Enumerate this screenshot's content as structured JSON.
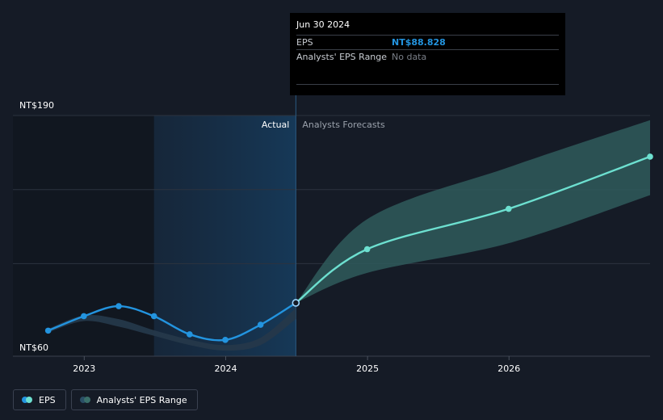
{
  "chart_data": {
    "type": "line",
    "y_axis": {
      "min_label": "NT$60",
      "max_label": "NT$190",
      "ylim": [
        60,
        190
      ]
    },
    "x_ticks": [
      {
        "label": "2023",
        "x": "2023-01-01"
      },
      {
        "label": "2024",
        "x": "2024-01-01"
      },
      {
        "label": "2025",
        "x": "2025-01-01"
      },
      {
        "label": "2026",
        "x": "2026-01-01"
      }
    ],
    "x_range": [
      "2022-07-01",
      "2026-12-31"
    ],
    "regions": {
      "actual_label": "Actual",
      "forecast_label": "Analysts Forecasts"
    },
    "series": [
      {
        "name": "EPS",
        "role": "actual",
        "color": "#2394df",
        "points": [
          {
            "x": "2022-09-30",
            "y": 73.8
          },
          {
            "x": "2022-12-31",
            "y": 81.6
          },
          {
            "x": "2023-03-31",
            "y": 87.0
          },
          {
            "x": "2023-06-30",
            "y": 81.6
          },
          {
            "x": "2023-09-30",
            "y": 71.8
          },
          {
            "x": "2023-12-31",
            "y": 68.8
          },
          {
            "x": "2024-03-31",
            "y": 77.0
          },
          {
            "x": "2024-06-30",
            "y": 88.8
          }
        ]
      },
      {
        "name": "EPS",
        "role": "forecast",
        "color": "#6de0d0",
        "points": [
          {
            "x": "2024-06-30",
            "y": 88.8
          },
          {
            "x": "2024-12-31",
            "y": 117.8
          },
          {
            "x": "2025-12-31",
            "y": 139.6
          },
          {
            "x": "2026-12-31",
            "y": 167.8
          }
        ]
      }
    ],
    "eps_range": {
      "name": "Analysts' EPS Range",
      "past": [
        {
          "x": "2022-09-30",
          "lo": 72.8,
          "hi": 74.8
        },
        {
          "x": "2022-12-31",
          "lo": 79.0,
          "hi": 82.0
        },
        {
          "x": "2023-03-31",
          "lo": 76.0,
          "hi": 80.0
        },
        {
          "x": "2023-06-30",
          "lo": 71.0,
          "hi": 74.0
        },
        {
          "x": "2023-09-30",
          "lo": 66.0,
          "hi": 69.0
        },
        {
          "x": "2023-12-31",
          "lo": 63.0,
          "hi": 66.0
        },
        {
          "x": "2024-03-31",
          "lo": 66.0,
          "hi": 70.0
        },
        {
          "x": "2024-06-30",
          "lo": 80.0,
          "hi": 86.0
        }
      ],
      "future": [
        {
          "x": "2024-06-30",
          "lo": 88.8,
          "hi": 88.8
        },
        {
          "x": "2024-12-31",
          "lo": 105.0,
          "hi": 134.0
        },
        {
          "x": "2025-12-31",
          "lo": 121.0,
          "hi": 162.0
        },
        {
          "x": "2026-12-31",
          "lo": 147.0,
          "hi": 187.5
        }
      ]
    },
    "highlight": {
      "x": "2024-06-30",
      "y": 88.8
    },
    "grid": true
  },
  "tooltip": {
    "date": "Jun 30 2024",
    "rows": [
      {
        "key": "EPS",
        "value": "NT$88.828"
      },
      {
        "key": "Analysts' EPS Range",
        "value": "No data"
      }
    ]
  },
  "legend": {
    "items": [
      {
        "label": "EPS",
        "colors": [
          "#2394df",
          "#6de0d0"
        ]
      },
      {
        "label": "Analysts' EPS Range",
        "colors": [
          "#2a4f66",
          "#3a6f6a"
        ]
      }
    ]
  }
}
